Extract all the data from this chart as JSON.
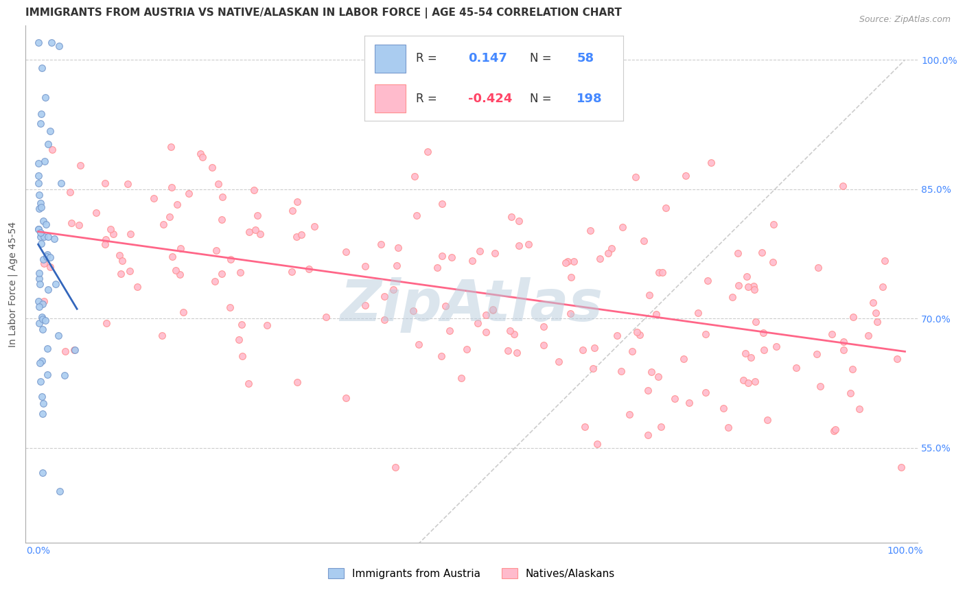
{
  "title": "IMMIGRANTS FROM AUSTRIA VS NATIVE/ALASKAN IN LABOR FORCE | AGE 45-54 CORRELATION CHART",
  "source": "Source: ZipAtlas.com",
  "ylabel": "In Labor Force | Age 45-54",
  "xlim": [
    -0.015,
    1.015
  ],
  "ylim": [
    0.44,
    1.04
  ],
  "x_tick_vals": [
    0.0,
    1.0
  ],
  "x_tick_labels": [
    "0.0%",
    "100.0%"
  ],
  "y_tick_vals_right": [
    1.0,
    0.85,
    0.7,
    0.55
  ],
  "y_tick_labels_right": [
    "100.0%",
    "85.0%",
    "70.0%",
    "55.0%"
  ],
  "austria_fill": "#aaccf0",
  "austria_edge": "#7799cc",
  "native_fill": "#ffbbcc",
  "native_edge": "#ff9090",
  "trendline_austria_color": "#3366bb",
  "trendline_native_color": "#ff6688",
  "diagonal_color": "#cccccc",
  "R_austria": 0.147,
  "N_austria": 58,
  "R_native": -0.424,
  "N_native": 198,
  "legend_label_austria": "Immigrants from Austria",
  "legend_label_native": "Natives/Alaskans",
  "watermark": "ZipAtlas",
  "background_color": "#ffffff",
  "grid_color": "#cccccc",
  "title_color": "#333333",
  "source_color": "#999999",
  "axis_label_color": "#555555",
  "right_tick_color": "#4488ff",
  "bottom_tick_color": "#4488ff",
  "legend_text_dark": "#333333",
  "legend_text_blue": "#4488ff",
  "legend_r_negative_color": "#ff4466",
  "marker_size": 7,
  "austria_seed": 12,
  "native_seed": 99
}
